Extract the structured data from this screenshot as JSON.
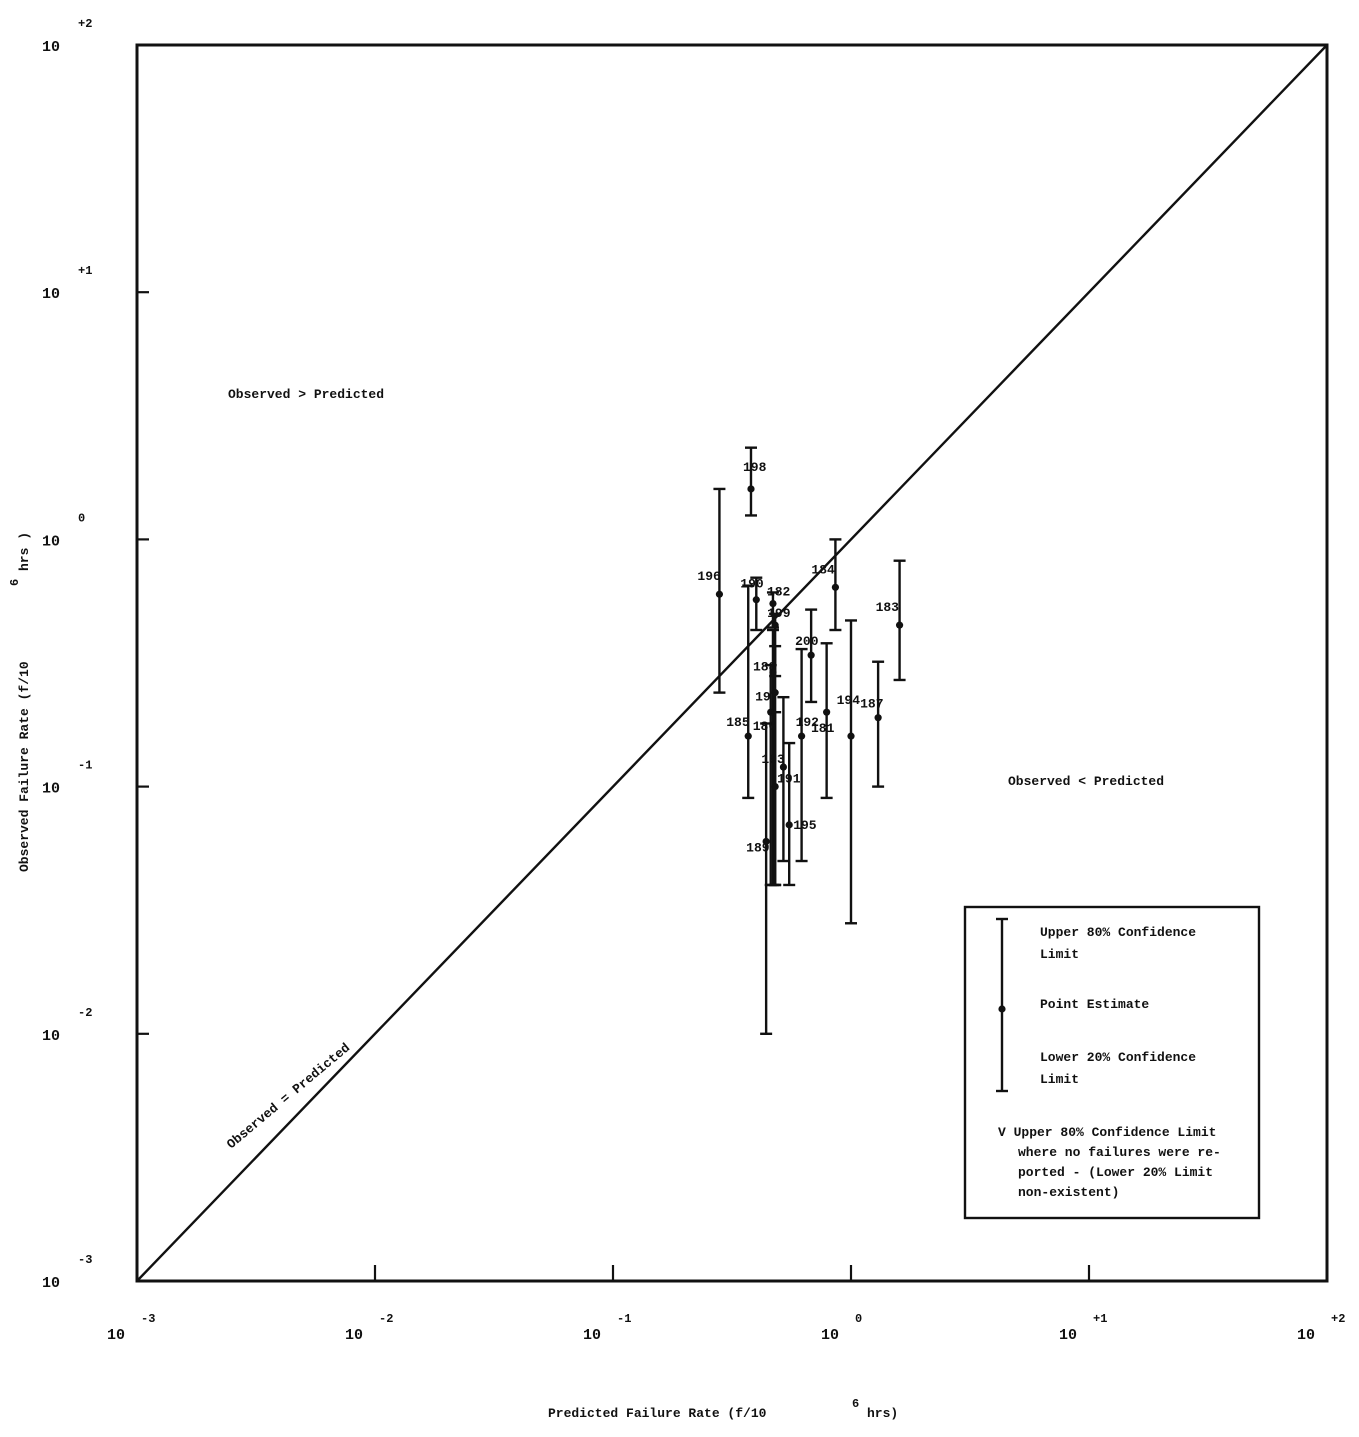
{
  "chart_data": {
    "type": "scatter",
    "scale": {
      "x": "log",
      "y": "log"
    },
    "xlabel": "Predicted Failure Rate (f/10",
    "xlabel_exp": "6",
    "xlabel_suffix": " hrs)",
    "ylabel": "Observed Failure Rate (f/10",
    "ylabel_exp": "6",
    "ylabel_suffix": " hrs )",
    "xlim": [
      0.001,
      100
    ],
    "ylim": [
      0.001,
      100
    ],
    "ticks": {
      "x": [
        {
          "value": 0.001,
          "base": "10",
          "exp": "-3"
        },
        {
          "value": 0.01,
          "base": "10",
          "exp": "-2"
        },
        {
          "value": 0.1,
          "base": "10",
          "exp": "-1"
        },
        {
          "value": 1,
          "base": "10",
          "exp": "0"
        },
        {
          "value": 10,
          "base": "10",
          "exp": "+1"
        },
        {
          "value": 100,
          "base": "10",
          "exp": "+2"
        }
      ],
      "y": [
        {
          "value": 0.001,
          "base": "10",
          "exp": "-3"
        },
        {
          "value": 0.01,
          "base": "10",
          "exp": "-2"
        },
        {
          "value": 0.1,
          "base": "10",
          "exp": "-1"
        },
        {
          "value": 1,
          "base": "10",
          "exp": "0"
        },
        {
          "value": 10,
          "base": "10",
          "exp": "+1"
        },
        {
          "value": 100,
          "base": "10",
          "exp": "+2"
        }
      ]
    },
    "annotations": [
      {
        "name": "observed-greater-predicted-label",
        "text": "Observed > Predicted"
      },
      {
        "name": "observed-less-predicted-label",
        "text": "Observed < Predicted"
      },
      {
        "name": "diagonal-reference-label",
        "text": "Observed = Predicted"
      }
    ],
    "reference_line": {
      "name": "Observed = Predicted",
      "from": [
        0.001,
        0.001
      ],
      "to": [
        100,
        100
      ]
    },
    "legend": {
      "placement": "bottom-right",
      "items": [
        {
          "name": "upper-limit",
          "text": "Upper 80% Confidence Limit"
        },
        {
          "name": "point-estimate",
          "text": "Point Estimate"
        },
        {
          "name": "lower-limit",
          "text": "Lower 20% Confidence Limit"
        },
        {
          "name": "no-failure-limit",
          "text": "V Upper 80% Confidence Limit where no failures were reported - (Lower 20% Limit non-existent)"
        }
      ]
    },
    "series": [
      {
        "id": "196",
        "x": 0.28,
        "y": 0.6,
        "upper": 1.6,
        "lower": 0.24
      },
      {
        "id": "198",
        "x": 0.38,
        "y": 1.6,
        "upper": 2.35,
        "lower": 1.25
      },
      {
        "id": "185",
        "x": 0.37,
        "y": 0.16,
        "upper": 0.65,
        "lower": 0.09
      },
      {
        "id": "190",
        "x": 0.4,
        "y": 0.57,
        "upper": 0.7,
        "lower": 0.43
      },
      {
        "id": "182",
        "x": 0.47,
        "y": 0.55,
        "upper": 0.61,
        "lower": 0.44
      },
      {
        "id": "199",
        "x": 0.48,
        "y": 0.45,
        "upper": 0.5,
        "lower": 0.28
      },
      {
        "id": "184",
        "x": 0.86,
        "y": 0.64,
        "upper": 1.0,
        "lower": 0.43
      },
      {
        "id": "183",
        "x": 1.6,
        "y": 0.45,
        "upper": 0.82,
        "lower": 0.27
      },
      {
        "id": "194",
        "x": 0.79,
        "y": 0.2,
        "upper": 0.38,
        "lower": 0.09
      },
      {
        "id": "200",
        "x": 0.68,
        "y": 0.34,
        "upper": 0.52,
        "lower": 0.22
      },
      {
        "id": "192",
        "x": 0.62,
        "y": 0.16,
        "upper": 0.36,
        "lower": 0.05
      },
      {
        "id": "193",
        "x": 0.52,
        "y": 0.12,
        "upper": 0.23,
        "lower": 0.05
      },
      {
        "id": "187",
        "x": 1.3,
        "y": 0.19,
        "upper": 0.32,
        "lower": 0.1
      },
      {
        "id": "181",
        "x": 1.0,
        "y": 0.16,
        "upper": 0.47,
        "lower": 0.028
      },
      {
        "id": "188",
        "x": 0.47,
        "y": 0.29,
        "upper": 0.43,
        "lower": 0.04
      },
      {
        "id": "197",
        "x": 0.48,
        "y": 0.24,
        "upper": 0.37,
        "lower": 0.04
      },
      {
        "id": "186",
        "x": 0.46,
        "y": 0.2,
        "upper": 0.31,
        "lower": 0.04
      },
      {
        "id": "189",
        "x": 0.44,
        "y": 0.06,
        "upper": 0.18,
        "lower": 0.01
      },
      {
        "id": "191",
        "x": 0.48,
        "y": 0.1,
        "upper": 0.2,
        "lower": 0.04
      },
      {
        "id": "195",
        "x": 0.55,
        "y": 0.07,
        "upper": 0.15,
        "lower": 0.04
      }
    ],
    "page_labels": {
      "corner_top_left": "10",
      "corner_top_left_exp": "+2",
      "corner_bottom_left": "10",
      "corner_bottom_left_exp": "-3",
      "corner_bottom_right": "10",
      "corner_bottom_right_exp": "+2",
      "corner_bottom_left_x": "10",
      "corner_bottom_left_x_exp": "-3"
    }
  }
}
